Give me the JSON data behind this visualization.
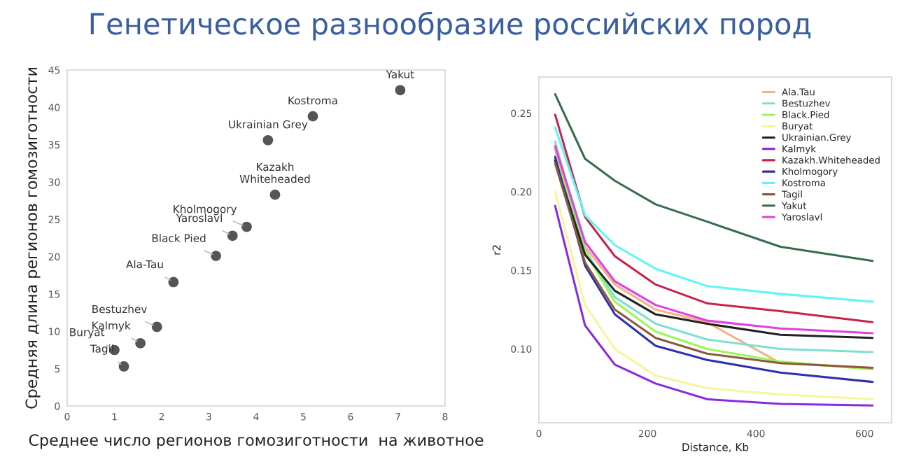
{
  "chart_data": [
    {
      "type": "scatter",
      "title": "Генетическое разнообразие российских пород",
      "xlabel": "Среднее число регионов гомозиготности  на животное",
      "ylabel": "Средняя длина регионов гомозиготности",
      "x": [
        7.05,
        5.2,
        4.25,
        4.4,
        3.8,
        3.5,
        3.15,
        2.25,
        1.9,
        1.55,
        1.0,
        1.2
      ],
      "series": [
        {
          "color": "#555555",
          "values": [
            42.3,
            38.8,
            35.6,
            28.3,
            24.0,
            22.8,
            20.1,
            16.6,
            10.6,
            8.4,
            7.5,
            5.3
          ]
        }
      ],
      "annotations": [
        {
          "text": "Yakut",
          "x": 7.05,
          "y": 42.3
        },
        {
          "text": "Kostroma",
          "x": 5.2,
          "y": 38.8
        },
        {
          "text": "Ukrainian Grey",
          "x": 4.25,
          "y": 35.6
        },
        {
          "text": "Kazakh\nWhiteheaded",
          "x": 4.4,
          "y": 28.3
        },
        {
          "text": "Kholmogory",
          "x": 3.8,
          "y": 24.0
        },
        {
          "text": "Yaroslavl",
          "x": 3.5,
          "y": 22.8
        },
        {
          "text": "Black Pied",
          "x": 3.15,
          "y": 20.1
        },
        {
          "text": "Ala-Tau",
          "x": 2.25,
          "y": 16.6
        },
        {
          "text": "Bestuzhev",
          "x": 1.9,
          "y": 10.6
        },
        {
          "text": "Kalmyk",
          "x": 1.55,
          "y": 8.4
        },
        {
          "text": "Buryat",
          "x": 1.0,
          "y": 7.5
        },
        {
          "text": "Tagil",
          "x": 1.2,
          "y": 5.3
        }
      ],
      "xlim": [
        0,
        8
      ],
      "xticks": [
        0,
        1,
        2,
        3,
        4,
        5,
        6,
        7,
        8
      ],
      "ylim": [
        0,
        45
      ],
      "yticks": [
        0,
        5,
        10,
        15,
        20,
        25,
        30,
        35,
        40,
        45
      ],
      "marker": "circle",
      "grid": false
    },
    {
      "type": "line",
      "xlabel": "Distance, Kb",
      "ylabel": "r2",
      "x": [
        30,
        85,
        140,
        215,
        310,
        445,
        615
      ],
      "series": [
        {
          "name": "Ala.Tau",
          "color": "#f4b183",
          "values": [
            0.227,
            0.165,
            0.141,
            0.125,
            0.117,
            0.091,
            0.088
          ]
        },
        {
          "name": "Bestuzhev",
          "color": "#7fe0d0",
          "values": [
            0.232,
            0.163,
            0.133,
            0.116,
            0.106,
            0.1,
            0.098
          ]
        },
        {
          "name": "Black.Pied",
          "color": "#9cf55a",
          "values": [
            0.223,
            0.162,
            0.13,
            0.111,
            0.1,
            0.092,
            0.087
          ]
        },
        {
          "name": "Buryat",
          "color": "#f5f59a",
          "values": [
            0.2,
            0.128,
            0.1,
            0.083,
            0.075,
            0.071,
            0.068
          ]
        },
        {
          "name": "Ukrainian.Grey",
          "color": "#222222",
          "values": [
            0.22,
            0.16,
            0.137,
            0.122,
            0.116,
            0.109,
            0.107
          ]
        },
        {
          "name": "Kalmyk",
          "color": "#8a2be2",
          "values": [
            0.191,
            0.115,
            0.09,
            0.078,
            0.068,
            0.065,
            0.064
          ]
        },
        {
          "name": "Kazakh.Whiteheaded",
          "color": "#c8224a",
          "values": [
            0.249,
            0.184,
            0.159,
            0.141,
            0.129,
            0.124,
            0.117
          ]
        },
        {
          "name": "Kholmogory",
          "color": "#3030b0",
          "values": [
            0.222,
            0.153,
            0.122,
            0.102,
            0.093,
            0.085,
            0.079
          ]
        },
        {
          "name": "Kostroma",
          "color": "#5ff5f5",
          "values": [
            0.241,
            0.185,
            0.166,
            0.151,
            0.14,
            0.135,
            0.13
          ]
        },
        {
          "name": "Tagil",
          "color": "#8b5a3c",
          "values": [
            0.218,
            0.155,
            0.125,
            0.107,
            0.097,
            0.091,
            0.088
          ]
        },
        {
          "name": "Yakut",
          "color": "#3a6b4a",
          "values": [
            0.262,
            0.221,
            0.207,
            0.192,
            0.181,
            0.165,
            0.156
          ]
        },
        {
          "name": "Yaroslavl",
          "color": "#e040e0",
          "values": [
            0.229,
            0.168,
            0.143,
            0.128,
            0.118,
            0.113,
            0.11
          ]
        }
      ],
      "xlim": [
        0,
        650
      ],
      "xticks": [
        0,
        200,
        400,
        600
      ],
      "ylim": [
        0.053,
        0.273
      ],
      "yticks": [
        {
          "value": 0.1,
          "label": "0.10"
        },
        {
          "value": 0.15,
          "label": "0.15"
        },
        {
          "value": 0.2,
          "label": "0.20"
        },
        {
          "value": 0.25,
          "label": "0.25"
        }
      ],
      "marker": "none",
      "line_style": "solid",
      "grid": false,
      "legend": "top right"
    }
  ]
}
